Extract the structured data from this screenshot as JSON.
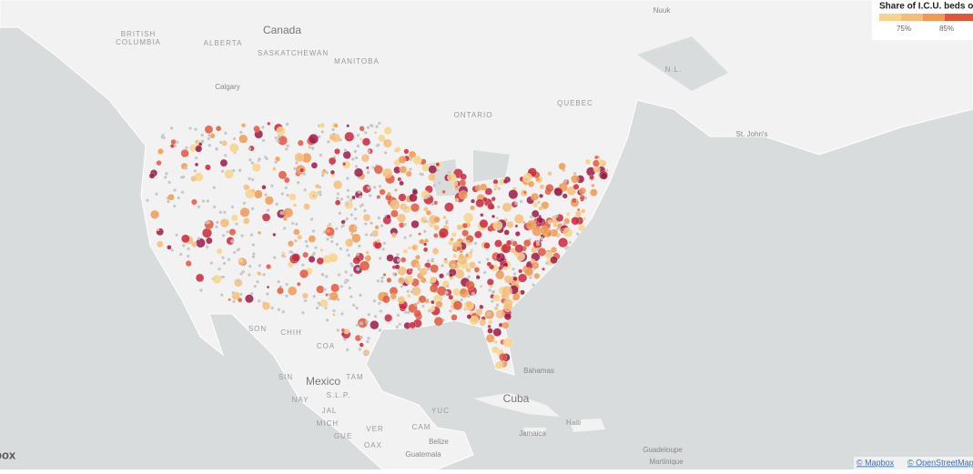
{
  "map": {
    "legend": {
      "title": "Share of I.C.U. beds o",
      "labels": [
        "75%",
        "85%"
      ]
    },
    "places": [
      {
        "label": "Canada"
      },
      {
        "label": "BRITISH"
      },
      {
        "label": "COLUMBIA"
      },
      {
        "label": "ALBERTA"
      },
      {
        "label": "SASKATCHEWAN"
      },
      {
        "label": "MANITOBA"
      },
      {
        "label": "Calgary"
      },
      {
        "label": "ONTARIO"
      },
      {
        "label": "QUEBEC"
      },
      {
        "label": "N.L."
      },
      {
        "label": "St. John's"
      },
      {
        "label": "Nuuk"
      },
      {
        "label": "Mexico"
      },
      {
        "label": "SON"
      },
      {
        "label": "CHIH"
      },
      {
        "label": "COA"
      },
      {
        "label": "SIN"
      },
      {
        "label": "TAM"
      },
      {
        "label": "S.L.P."
      },
      {
        "label": "NAY"
      },
      {
        "label": "JAL"
      },
      {
        "label": "MICH"
      },
      {
        "label": "GUE"
      },
      {
        "label": "VER"
      },
      {
        "label": "OAX"
      },
      {
        "label": "CAM"
      },
      {
        "label": "YUC"
      },
      {
        "label": "Belize"
      },
      {
        "label": "Guatemala"
      },
      {
        "label": "Cuba"
      },
      {
        "label": "Bahamas"
      },
      {
        "label": "Jamaica"
      },
      {
        "label": "Haiti"
      },
      {
        "label": "Guadeloupe"
      },
      {
        "label": "Martinique"
      }
    ],
    "attribution": [
      "© Mapbox",
      "© OpenStreetMap"
    ],
    "logo": "box"
  }
}
